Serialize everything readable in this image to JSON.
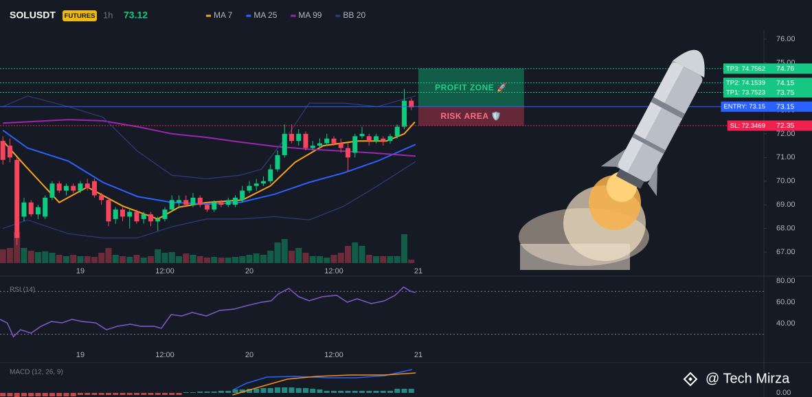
{
  "chart_data": {
    "type": "candlestick",
    "title": "SOLUSDT",
    "badge": "FUTURES",
    "interval": "1h",
    "last_price": 73.12,
    "up_color": "#0ecb81",
    "down_color": "#f6465d",
    "xlim": [
      -0.41,
      108.07
    ],
    "xticks": [
      {
        "value": 11,
        "label": "19"
      },
      {
        "value": 23,
        "label": "12:00"
      },
      {
        "value": 35,
        "label": "20"
      },
      {
        "value": 47,
        "label": "12:00"
      },
      {
        "value": 59,
        "label": "21"
      }
    ],
    "ylim": [
      66.48,
      76.35
    ],
    "yticks": [
      {
        "value": 67,
        "label": "67.00"
      },
      {
        "value": 68,
        "label": "68.00"
      },
      {
        "value": 69,
        "label": "69.00"
      },
      {
        "value": 70,
        "label": "70.00"
      },
      {
        "value": 71,
        "label": "71.00"
      },
      {
        "value": 72,
        "label": "72.00"
      },
      {
        "value": 73,
        "label": "73.00"
      },
      {
        "value": 74,
        "label": "74.00"
      },
      {
        "value": 75,
        "label": "75.00"
      },
      {
        "value": 76,
        "label": "76.00"
      }
    ],
    "ohlc": [
      [
        71.7,
        71.9,
        70.7,
        70.9
      ],
      [
        71.5,
        71.8,
        70.8,
        71.0
      ],
      [
        70.9,
        71.0,
        67.3,
        67.6
      ],
      [
        68.5,
        69.3,
        68.3,
        69.1
      ],
      [
        69.1,
        69.2,
        68.5,
        68.6
      ],
      [
        68.6,
        69.0,
        68.4,
        68.9
      ],
      [
        68.5,
        69.4,
        68.4,
        69.3
      ],
      [
        69.3,
        70.0,
        69.2,
        69.9
      ],
      [
        69.9,
        70.0,
        69.5,
        69.6
      ],
      [
        69.6,
        69.9,
        69.4,
        69.8
      ],
      [
        69.8,
        69.9,
        69.5,
        69.6
      ],
      [
        69.6,
        70.0,
        69.5,
        69.9
      ],
      [
        69.9,
        70.1,
        69.6,
        69.7
      ],
      [
        70.0,
        70.1,
        69.3,
        69.4
      ],
      [
        69.4,
        69.5,
        69.0,
        69.2
      ],
      [
        69.2,
        69.3,
        68.1,
        68.3
      ],
      [
        68.4,
        68.9,
        68.2,
        68.8
      ],
      [
        68.8,
        68.9,
        68.3,
        68.5
      ],
      [
        68.5,
        68.8,
        68.0,
        68.7
      ],
      [
        68.7,
        68.8,
        68.2,
        68.3
      ],
      [
        68.4,
        68.7,
        68.2,
        68.6
      ],
      [
        68.6,
        68.7,
        68.1,
        68.3
      ],
      [
        68.3,
        68.5,
        67.9,
        68.4
      ],
      [
        68.4,
        68.9,
        68.3,
        68.8
      ],
      [
        68.8,
        69.4,
        68.7,
        69.2
      ],
      [
        69.1,
        69.4,
        68.9,
        69.2
      ],
      [
        69.2,
        69.4,
        68.9,
        69.0
      ],
      [
        69.0,
        69.5,
        68.9,
        69.3
      ],
      [
        69.3,
        69.4,
        68.9,
        69.0
      ],
      [
        69.0,
        69.1,
        68.7,
        68.8
      ],
      [
        68.8,
        69.2,
        68.7,
        69.1
      ],
      [
        69.1,
        69.2,
        68.9,
        69.0
      ],
      [
        69.0,
        69.3,
        68.9,
        69.2
      ],
      [
        69.0,
        69.4,
        68.9,
        69.3
      ],
      [
        69.2,
        69.8,
        69.1,
        69.6
      ],
      [
        69.6,
        70.0,
        69.5,
        69.8
      ],
      [
        69.8,
        70.1,
        69.6,
        69.9
      ],
      [
        69.9,
        70.2,
        69.8,
        70.0
      ],
      [
        70.0,
        70.7,
        69.9,
        70.5
      ],
      [
        70.5,
        71.3,
        70.4,
        71.1
      ],
      [
        71.1,
        72.4,
        71.0,
        72.0
      ],
      [
        72.0,
        72.4,
        71.6,
        71.7
      ],
      [
        71.7,
        72.2,
        71.5,
        72.0
      ],
      [
        72.0,
        72.1,
        71.3,
        71.4
      ],
      [
        71.4,
        71.7,
        71.3,
        71.5
      ],
      [
        71.5,
        71.8,
        71.4,
        71.6
      ],
      [
        71.6,
        72.0,
        71.5,
        71.8
      ],
      [
        71.8,
        71.9,
        71.5,
        71.6
      ],
      [
        71.6,
        71.8,
        71.2,
        71.4
      ],
      [
        71.4,
        71.6,
        70.4,
        71.0
      ],
      [
        71.2,
        72.0,
        71.0,
        71.9
      ],
      [
        71.9,
        72.3,
        71.8,
        72.0
      ],
      [
        71.9,
        72.0,
        71.5,
        71.7
      ],
      [
        71.7,
        72.0,
        71.6,
        71.9
      ],
      [
        71.8,
        71.9,
        71.5,
        71.7
      ],
      [
        71.7,
        72.0,
        71.6,
        71.9
      ],
      [
        71.9,
        72.4,
        71.8,
        72.3
      ],
      [
        72.3,
        73.9,
        72.2,
        73.4
      ],
      [
        73.4,
        73.5,
        73.0,
        73.12
      ]
    ],
    "volume": [
      20,
      22,
      45,
      22,
      18,
      16,
      17,
      15,
      12,
      10,
      12,
      10,
      10,
      9,
      15,
      22,
      12,
      10,
      9,
      12,
      8,
      10,
      20,
      15,
      16,
      10,
      14,
      12,
      10,
      8,
      9,
      8,
      8,
      9,
      10,
      12,
      14,
      12,
      18,
      30,
      35,
      18,
      22,
      15,
      10,
      10,
      8,
      12,
      15,
      25,
      30,
      25,
      12,
      10,
      10,
      10,
      10,
      42,
      5
    ],
    "lines": [
      {
        "name": "MA 7",
        "color": "#f7a21b",
        "x": [
          0,
          3,
          8,
          12,
          17,
          22,
          25,
          29,
          34,
          38,
          41.5,
          45.5,
          50.5,
          54.5,
          57,
          58.5
        ],
        "values": [
          71.7,
          70.7,
          69.1,
          69.75,
          68.95,
          68.4,
          68.9,
          69.1,
          69.2,
          69.8,
          70.8,
          71.5,
          71.7,
          71.7,
          72.0,
          72.5
        ]
      },
      {
        "name": "MA 25",
        "color": "#2962ff",
        "x": [
          0,
          3.5,
          9.3,
          14.2,
          19.1,
          24,
          28.9,
          33.7,
          38.6,
          43.5,
          48.4,
          53.2,
          58.6
        ],
        "values": [
          72.15,
          71.4,
          70.85,
          69.95,
          69.35,
          69.1,
          69.03,
          69.1,
          69.45,
          69.95,
          70.35,
          70.85,
          71.55
        ]
      },
      {
        "name": "MA 99",
        "color": "#9c27b0",
        "x": [
          0,
          9.3,
          14.2,
          19.1,
          24,
          28.9,
          33.7,
          38.6,
          43.5,
          48.4,
          53.2,
          58.6
        ],
        "values": [
          72.45,
          72.6,
          72.55,
          72.3,
          72.0,
          71.85,
          71.65,
          71.47,
          71.35,
          71.27,
          71.18,
          71.06
        ]
      },
      {
        "name": "BB 20",
        "color": "#2f3c7e",
        "x": [
          0,
          3.5,
          9.3,
          14.2,
          19.1,
          24,
          28.9,
          33.7,
          36.7,
          40.6,
          43.5,
          48.4,
          53.2,
          58.6
        ],
        "values": [
          73.15,
          73.6,
          73.15,
          72.7,
          71.27,
          70.25,
          70.1,
          70.25,
          70.5,
          72.0,
          73.3,
          73.3,
          73.15,
          73.6
        ]
      },
      {
        "color": "#2f3c7e",
        "x": [
          0,
          3.5,
          9.3,
          14.2,
          19.1,
          24,
          28.9,
          33.7,
          38.6,
          43.5,
          48.4,
          53.2,
          58.6
        ],
        "values": [
          68.0,
          68.36,
          67.78,
          67.6,
          67.6,
          68.07,
          68.4,
          68.4,
          68.5,
          68.36,
          68.94,
          69.8,
          70.83
        ]
      }
    ],
    "levels": [
      {
        "label": "TP3: 74.7562",
        "value": 74.7562,
        "axis_label": "74.76",
        "color": "#16c784",
        "dash": true
      },
      {
        "label": "TP2: 74.1539",
        "value": 74.1539,
        "axis_label": "74.15",
        "color": "#16c784",
        "dash": true
      },
      {
        "label": "TP1: 73.7523",
        "value": 73.7523,
        "axis_label": "73.75",
        "color": "#16c784",
        "dash": true
      },
      {
        "label": "ENTRY: 73.15",
        "value": 73.15,
        "axis_label": "73.15",
        "color": "#2962ff",
        "dash": false
      },
      {
        "label": "SL: 72.3469",
        "value": 72.3469,
        "axis_label": "72.35",
        "color": "#f0204f",
        "dash": true
      }
    ],
    "zones": [
      {
        "label": "PROFIT ZONE 🚀",
        "ylim": [
          73.15,
          74.7562
        ],
        "xlim": [
          59,
          74
        ],
        "fill": "rgba(14,203,129,0.38)",
        "color": "#1fd18e"
      },
      {
        "label": "RISK AREA 🛡️",
        "ylim": [
          72.3469,
          73.15
        ],
        "xlim": [
          59,
          74
        ],
        "fill": "rgba(246,70,93,0.35)",
        "color": "#ff6f86"
      }
    ],
    "rsi": {
      "title": "RSI (14)",
      "color": "#7e57c2",
      "ylim": [
        4,
        82.5
      ],
      "yticks": [
        {
          "value": 80,
          "label": "80.00"
        },
        {
          "value": 60,
          "label": "60.00"
        },
        {
          "value": 40,
          "label": "40.00"
        }
      ],
      "bands": [
        70,
        30
      ],
      "x": [
        -0.4,
        0.6,
        1.5,
        2.5,
        4.0,
        5.4,
        6.9,
        8.4,
        9.8,
        11.3,
        13.2,
        14.7,
        16.2,
        18.1,
        19.6,
        21.5,
        22.5,
        23.9,
        25.4,
        26.9,
        28.9,
        30.8,
        32.8,
        34.7,
        36.7,
        38.1,
        39.1,
        40.6,
        42.0,
        43.5,
        45.4,
        47.4,
        48.9,
        50.3,
        52.3,
        54.2,
        55.7,
        56.9,
        57.9,
        58.6
      ],
      "values": [
        43.9,
        40.6,
        27.7,
        34.2,
        31.0,
        37.4,
        41.9,
        40.6,
        43.9,
        41.9,
        40.6,
        34.2,
        37.4,
        39.4,
        37.4,
        37.4,
        35.5,
        48.4,
        47.1,
        50.3,
        47.1,
        52.3,
        53.5,
        56.8,
        60.0,
        61.3,
        67.7,
        72.9,
        65.2,
        61.3,
        65.2,
        66.5,
        60.0,
        63.2,
        58.7,
        61.3,
        66.5,
        74.2,
        70.3,
        69.0
      ]
    },
    "macd": {
      "title": "MACD (12, 26, 9)",
      "ylim": [
        -0.06,
        0.42
      ],
      "yticks": [
        {
          "value": 0,
          "label": "0.00"
        }
      ],
      "up_color": "#26a69a",
      "down_color": "#ef5350",
      "histogram": [
        -0.05,
        -0.05,
        -0.06,
        -0.05,
        -0.05,
        -0.05,
        -0.05,
        -0.05,
        -0.05,
        -0.05,
        -0.05,
        -0.03,
        -0.03,
        -0.03,
        -0.03,
        -0.03,
        -0.03,
        -0.03,
        -0.03,
        -0.03,
        -0.03,
        -0.03,
        -0.03,
        -0.03,
        -0.03,
        -0.03,
        0.01,
        0.01,
        0.02,
        0.02,
        0.02,
        0.03,
        0.03,
        0.05,
        0.05,
        0.06,
        0.06,
        0.07,
        0.07,
        0.08,
        0.08,
        0.08,
        0.07,
        0.07,
        0.06,
        0.05,
        0.03,
        0.03,
        0.03,
        0.03,
        0.03,
        0.03,
        0.03,
        0.03,
        0.03,
        0.03,
        0.06,
        0.06,
        0.06
      ],
      "lines": [
        {
          "color": "#2962ff",
          "x": [
            32.6,
            34.6,
            37.5,
            41.4,
            46.3,
            50.1,
            54.2,
            58.1
          ],
          "values": [
            0.04,
            0.14,
            0.23,
            0.24,
            0.22,
            0.22,
            0.25,
            0.34
          ]
        },
        {
          "color": "#f7931a",
          "x": [
            32.6,
            36.6,
            40.4,
            44.5,
            49.3,
            54.2,
            58.6
          ],
          "values": [
            -0.03,
            0.09,
            0.2,
            0.24,
            0.26,
            0.26,
            0.29
          ]
        }
      ]
    },
    "watermark": "@ Tech Mirza"
  }
}
